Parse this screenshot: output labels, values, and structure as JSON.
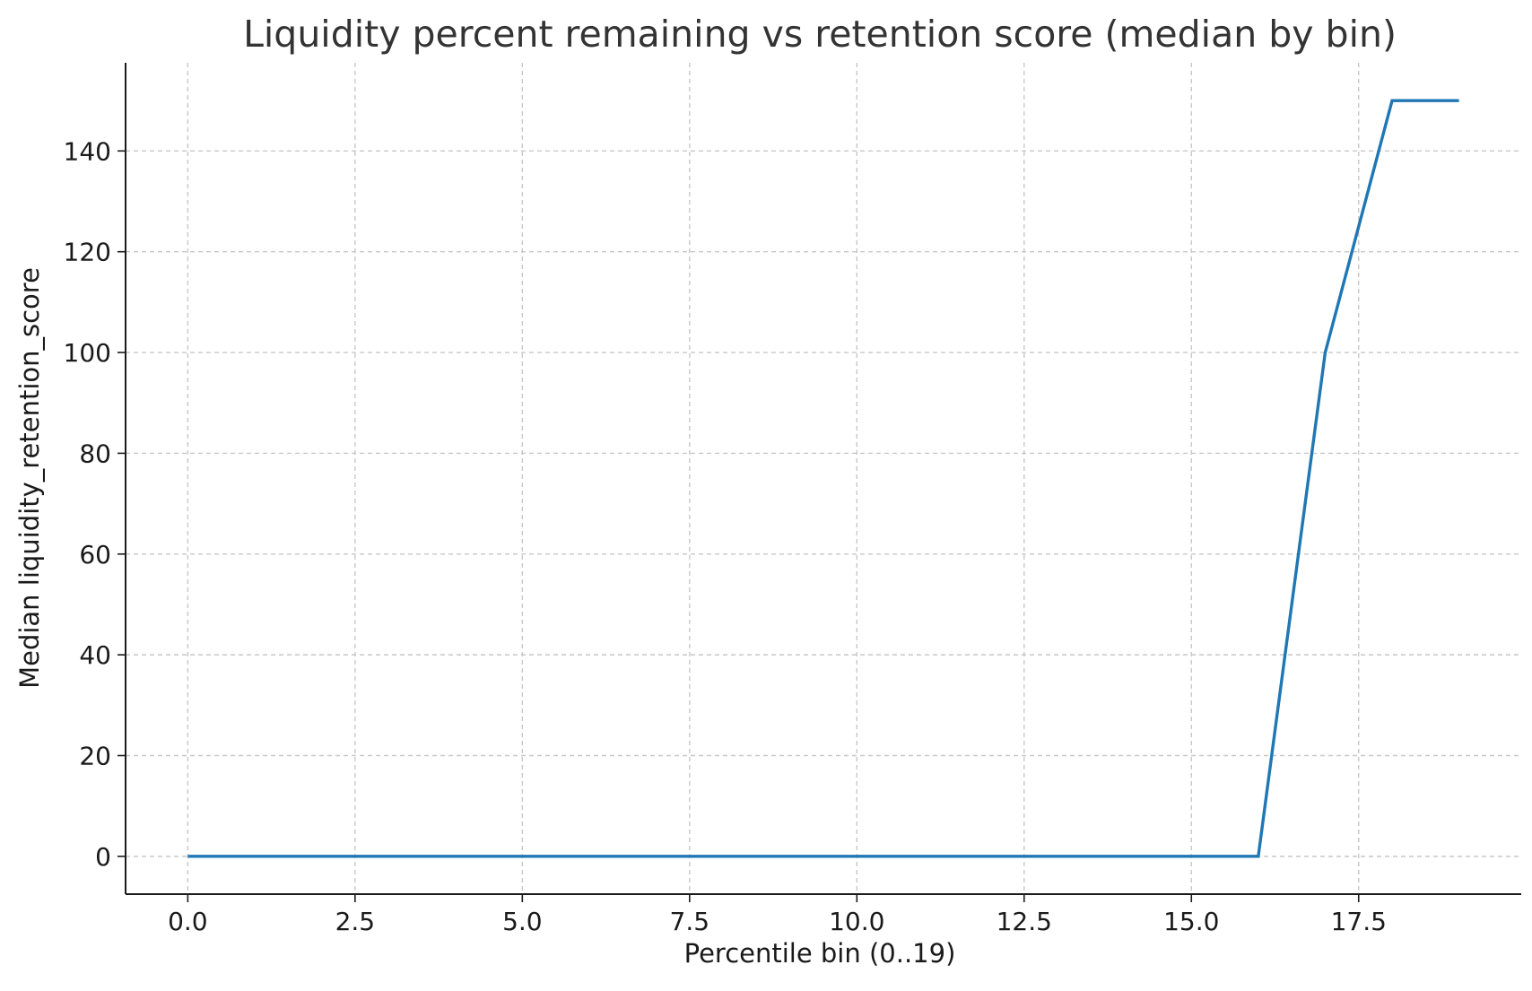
{
  "chart_data": {
    "type": "line",
    "title": "Liquidity percent remaining vs retention score (median by bin)",
    "xlabel": "Percentile bin (0..19)",
    "ylabel": "Median liquidity_retention_score",
    "xlim": [
      -0.93,
      19.93
    ],
    "ylim": [
      -7.5,
      157.5
    ],
    "x_ticks": [
      0.0,
      2.5,
      5.0,
      7.5,
      10.0,
      12.5,
      15.0,
      17.5
    ],
    "x_tick_labels": [
      "0.0",
      "2.5",
      "5.0",
      "7.5",
      "10.0",
      "12.5",
      "15.0",
      "17.5"
    ],
    "y_ticks": [
      0,
      20,
      40,
      60,
      80,
      100,
      120,
      140
    ],
    "y_tick_labels": [
      "0",
      "20",
      "40",
      "60",
      "80",
      "100",
      "120",
      "140"
    ],
    "grid": true,
    "series": [
      {
        "x": [
          0,
          1,
          2,
          3,
          4,
          5,
          6,
          7,
          8,
          9,
          10,
          11,
          12,
          13,
          14,
          15,
          16,
          17,
          18,
          19
        ],
        "values": [
          0,
          0,
          0,
          0,
          0,
          0,
          0,
          0,
          0,
          0,
          0,
          0,
          0,
          0,
          0,
          0,
          0,
          100,
          150,
          150
        ],
        "color": "#1f77b4"
      }
    ]
  }
}
